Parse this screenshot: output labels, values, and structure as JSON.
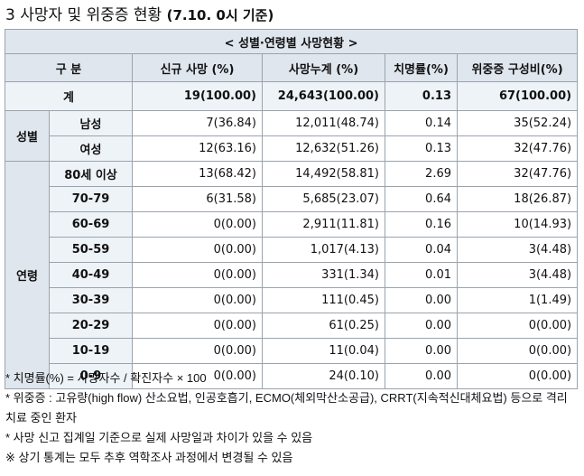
{
  "title": {
    "prefix": "3  사망자 및 위중증 현황",
    "date": "(7.10. 0시 기준)"
  },
  "table": {
    "caption": "< 성별·연령별 사망현황 >",
    "headers": [
      "구 분",
      "신규 사망      (%)",
      "사망누계      (%)",
      "치명률(%)",
      "위중증   구성비(%)"
    ],
    "total": {
      "label": "계",
      "new_deaths": "19(100.00)",
      "cum_deaths": "24,643(100.00)",
      "fatality": "0.13",
      "critical": "67(100.00)"
    },
    "sex_group": "성별",
    "sex_rows": [
      {
        "label": "남성",
        "new_deaths": "7(36.84)",
        "cum_deaths": "12,011(48.74)",
        "fatality": "0.14",
        "critical": "35(52.24)"
      },
      {
        "label": "여성",
        "new_deaths": "12(63.16)",
        "cum_deaths": "12,632(51.26)",
        "fatality": "0.13",
        "critical": "32(47.76)"
      }
    ],
    "age_group": "연령",
    "age_rows": [
      {
        "label": "80세 이상",
        "new_deaths": "13(68.42)",
        "cum_deaths": "14,492(58.81)",
        "fatality": "2.69",
        "critical": "32(47.76)"
      },
      {
        "label": "70-79",
        "new_deaths": "6(31.58)",
        "cum_deaths": "5,685(23.07)",
        "fatality": "0.64",
        "critical": "18(26.87)"
      },
      {
        "label": "60-69",
        "new_deaths": "0(0.00)",
        "cum_deaths": "2,911(11.81)",
        "fatality": "0.16",
        "critical": "10(14.93)"
      },
      {
        "label": "50-59",
        "new_deaths": "0(0.00)",
        "cum_deaths": "1,017(4.13)",
        "fatality": "0.04",
        "critical": "3(4.48)"
      },
      {
        "label": "40-49",
        "new_deaths": "0(0.00)",
        "cum_deaths": "331(1.34)",
        "fatality": "0.01",
        "critical": "3(4.48)"
      },
      {
        "label": "30-39",
        "new_deaths": "0(0.00)",
        "cum_deaths": "111(0.45)",
        "fatality": "0.00",
        "critical": "1(1.49)"
      },
      {
        "label": "20-29",
        "new_deaths": "0(0.00)",
        "cum_deaths": "61(0.25)",
        "fatality": "0.00",
        "critical": "0(0.00)"
      },
      {
        "label": "10-19",
        "new_deaths": "0(0.00)",
        "cum_deaths": "11(0.04)",
        "fatality": "0.00",
        "critical": "0(0.00)"
      },
      {
        "label": "0-9",
        "new_deaths": "0(0.00)",
        "cum_deaths": "24(0.10)",
        "fatality": "0.00",
        "critical": "0(0.00)"
      }
    ]
  },
  "notes": [
    "* 치명률(%) = 사망자수 / 확진자수 × 100",
    "* 위중증 : 고유량(high flow) 산소요법, 인공호흡기, ECMO(체외막산소공급), CRRT(지속적신대체요법) 등으로 격리 치료 중인 환자",
    "* 사망 신고 집계일 기준으로 실제 사망일과 차이가 있을 수 있음",
    "※ 상기 통계는 모두 추후 역학조사 과정에서 변경될 수 있음"
  ]
}
